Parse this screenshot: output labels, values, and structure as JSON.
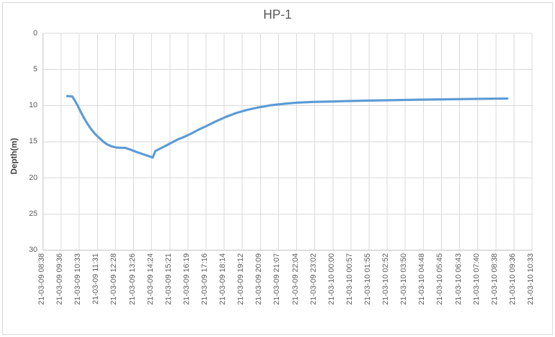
{
  "window": {
    "background": "#ffffff"
  },
  "chart_data": {
    "type": "line",
    "title": "HP-1",
    "xlabel": "",
    "ylabel": "Depth(m)",
    "ylim": [
      0,
      30
    ],
    "y_ticks": [
      0,
      5,
      10,
      15,
      20,
      25,
      30
    ],
    "y_axis_note": "value axis reversed visually: 0 at top, 30 at bottom (depth)",
    "grid": true,
    "legend": "none",
    "x_tick_labels": [
      "21-03-09 08:38",
      "21-03-09 09:36",
      "21-03-09 10:33",
      "21-03-09 11:31",
      "21-03-09 12:28",
      "21-03-09 13:26",
      "21-03-09 14:24",
      "21-03-09 15:21",
      "21-03-09 16:19",
      "21-03-09 17:16",
      "21-03-09 18:14",
      "21-03-09 19:12",
      "21-03-09 20:09",
      "21-03-09 21:07",
      "21-03-09 22:04",
      "21-03-09 23:02",
      "21-03-10 00:00",
      "21-03-10 00:57",
      "21-03-10 01:55",
      "21-03-10 02:52",
      "21-03-10 03:50",
      "21-03-10 04:48",
      "21-03-10 05:45",
      "21-03-10 06:43",
      "21-03-10 07:40",
      "21-03-10 08:38",
      "21-03-10 09:36",
      "21-03-10 10:33"
    ],
    "x_note": "series x values are minutes after 21-03-09 08:38 (axis start)",
    "x_total_minutes": 1555,
    "series": [
      {
        "name": "HP-1",
        "color": "#5B9BD5",
        "points": [
          [
            77,
            8.7
          ],
          [
            93,
            8.75
          ],
          [
            101,
            9.3
          ],
          [
            110,
            10.0
          ],
          [
            119,
            10.8
          ],
          [
            130,
            11.7
          ],
          [
            141,
            12.5
          ],
          [
            152,
            13.2
          ],
          [
            165,
            13.9
          ],
          [
            179,
            14.5
          ],
          [
            192,
            15.0
          ],
          [
            205,
            15.4
          ],
          [
            218,
            15.65
          ],
          [
            232,
            15.8
          ],
          [
            247,
            15.85
          ],
          [
            260,
            15.85
          ],
          [
            278,
            16.1
          ],
          [
            296,
            16.4
          ],
          [
            313,
            16.65
          ],
          [
            329,
            16.9
          ],
          [
            340,
            17.05
          ],
          [
            349,
            17.2
          ],
          [
            357,
            16.3
          ],
          [
            368,
            16.05
          ],
          [
            382,
            15.75
          ],
          [
            395,
            15.45
          ],
          [
            410,
            15.1
          ],
          [
            428,
            14.7
          ],
          [
            448,
            14.35
          ],
          [
            470,
            13.9
          ],
          [
            494,
            13.35
          ],
          [
            521,
            12.8
          ],
          [
            549,
            12.2
          ],
          [
            580,
            11.6
          ],
          [
            613,
            11.05
          ],
          [
            649,
            10.6
          ],
          [
            686,
            10.25
          ],
          [
            726,
            9.95
          ],
          [
            768,
            9.75
          ],
          [
            812,
            9.6
          ],
          [
            860,
            9.5
          ],
          [
            913,
            9.45
          ],
          [
            971,
            9.38
          ],
          [
            1032,
            9.32
          ],
          [
            1099,
            9.27
          ],
          [
            1169,
            9.22
          ],
          [
            1244,
            9.17
          ],
          [
            1324,
            9.12
          ],
          [
            1403,
            9.07
          ],
          [
            1476,
            9.03
          ]
        ]
      }
    ],
    "colors": {
      "line": "#5B9BD5",
      "gridline": "#D9D9D9",
      "axis_line": "#BFBFBF",
      "text": "#595959",
      "background": "#FFFFFF",
      "frame_border": "#D9D9D9"
    }
  }
}
